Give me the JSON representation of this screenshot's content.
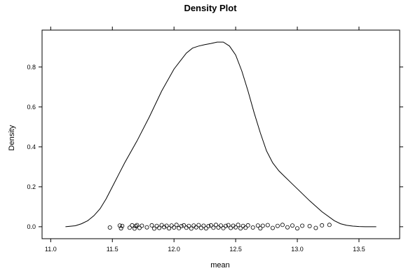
{
  "chart_data": {
    "type": "density",
    "title": "Density Plot",
    "xlabel": "mean",
    "ylabel": "Density",
    "xlim": [
      10.93,
      13.83
    ],
    "ylim": [
      -0.06,
      0.985
    ],
    "x_ticks": [
      11.0,
      11.5,
      12.0,
      12.5,
      13.0,
      13.5
    ],
    "x_tick_labels": [
      "11.0",
      "11.5",
      "12.0",
      "12.5",
      "13.0",
      "13.5"
    ],
    "y_ticks": [
      0.0,
      0.2,
      0.4,
      0.6,
      0.8
    ],
    "y_tick_labels": [
      "0.0",
      "0.2",
      "0.4",
      "0.6",
      "0.8"
    ],
    "grid": false,
    "density_curve": {
      "x": [
        11.12,
        11.2,
        11.25,
        11.3,
        11.35,
        11.4,
        11.45,
        11.5,
        11.55,
        11.6,
        11.7,
        11.8,
        11.9,
        12.0,
        12.1,
        12.15,
        12.2,
        12.25,
        12.3,
        12.35,
        12.4,
        12.45,
        12.5,
        12.55,
        12.6,
        12.65,
        12.7,
        12.75,
        12.8,
        12.85,
        12.9,
        12.95,
        13.0,
        13.1,
        13.2,
        13.3,
        13.35,
        13.4,
        13.45,
        13.5,
        13.55,
        13.64
      ],
      "y": [
        0.0,
        0.005,
        0.015,
        0.03,
        0.055,
        0.09,
        0.14,
        0.2,
        0.26,
        0.32,
        0.43,
        0.55,
        0.68,
        0.79,
        0.87,
        0.895,
        0.905,
        0.912,
        0.918,
        0.925,
        0.925,
        0.905,
        0.86,
        0.78,
        0.68,
        0.57,
        0.47,
        0.38,
        0.32,
        0.28,
        0.25,
        0.22,
        0.19,
        0.13,
        0.075,
        0.03,
        0.015,
        0.007,
        0.003,
        0.001,
        0.0,
        0.0
      ]
    },
    "rug_points": {
      "x": [
        11.48,
        11.56,
        11.57,
        11.58,
        11.64,
        11.66,
        11.68,
        11.69,
        11.7,
        11.72,
        11.74,
        11.78,
        11.82,
        11.84,
        11.86,
        11.88,
        11.9,
        11.92,
        11.94,
        11.96,
        11.98,
        12.0,
        12.02,
        12.04,
        12.06,
        12.08,
        12.1,
        12.12,
        12.14,
        12.16,
        12.18,
        12.2,
        12.22,
        12.24,
        12.26,
        12.28,
        12.3,
        12.32,
        12.34,
        12.36,
        12.38,
        12.4,
        12.42,
        12.44,
        12.46,
        12.48,
        12.5,
        12.52,
        12.54,
        12.56,
        12.58,
        12.6,
        12.64,
        12.68,
        12.7,
        12.72,
        12.76,
        12.8,
        12.84,
        12.88,
        12.92,
        12.96,
        13.0,
        13.04,
        13.1,
        13.15,
        13.2,
        13.26
      ],
      "y": [
        -0.004,
        0.006,
        -0.008,
        0.004,
        -0.005,
        0.007,
        -0.009,
        0.003,
        0.008,
        -0.006,
        0.005,
        -0.003,
        0.007,
        -0.009,
        0.004,
        -0.006,
        0.008,
        -0.002,
        0.005,
        -0.008,
        0.006,
        -0.004,
        0.009,
        -0.007,
        0.003,
        0.007,
        -0.005,
        0.004,
        -0.009,
        0.006,
        -0.003,
        0.008,
        -0.006,
        0.005,
        -0.008,
        0.003,
        0.007,
        -0.005,
        0.009,
        -0.004,
        0.006,
        -0.007,
        0.004,
        0.008,
        -0.006,
        0.005,
        -0.003,
        0.009,
        -0.008,
        0.004,
        -0.005,
        0.007,
        -0.004,
        0.006,
        -0.008,
        0.005,
        0.008,
        -0.006,
        0.004,
        0.009,
        -0.003,
        0.006,
        -0.008,
        0.005,
        0.003,
        -0.006,
        0.007,
        0.009
      ]
    }
  }
}
